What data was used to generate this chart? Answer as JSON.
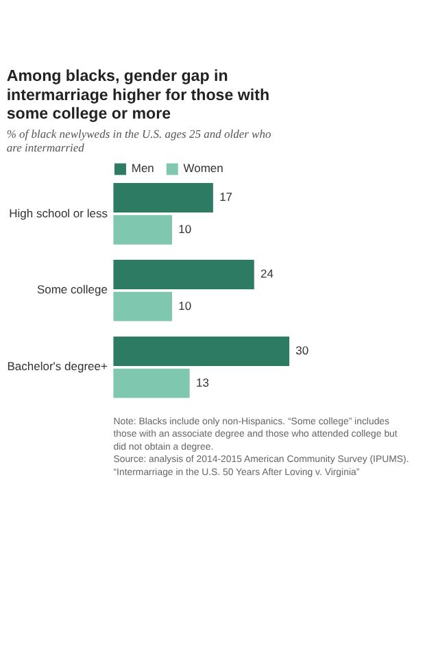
{
  "chart_data": {
    "type": "bar",
    "orientation": "horizontal",
    "title": "Among blacks, gender gap in intermarriage higher for those with some college or more",
    "subtitle": "% of black newlyweds in the U.S. ages 25 and older who are intermarried",
    "categories": [
      "High school or less",
      "Some college",
      "Bachelor's degree+"
    ],
    "series": [
      {
        "name": "Men",
        "color": "#2e7b63",
        "values": [
          17,
          24,
          30
        ]
      },
      {
        "name": "Women",
        "color": "#80c7b0",
        "values": [
          10,
          10,
          13
        ]
      }
    ],
    "data_labels": true,
    "legend": "top",
    "grid": false,
    "annotations": [
      "Note: Blacks include only non-Hispanics. “Some college” includes",
      "those with an associate degree and those who attended college but",
      "did not obtain a degree.",
      "Source: analysis of 2014-2015 American Community Survey (IPUMS).",
      "“Intermarriage in the U.S. 50 Years After Loving v. Virginia”"
    ]
  }
}
